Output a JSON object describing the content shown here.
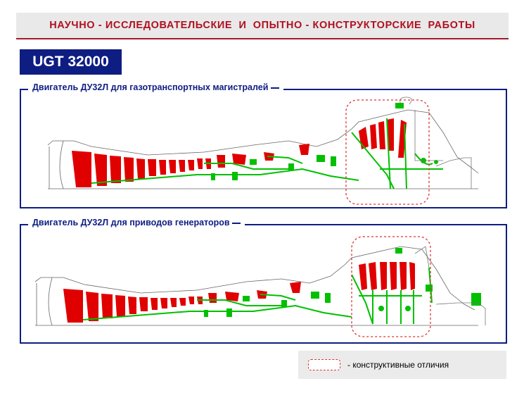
{
  "header": {
    "title": "НАУЧНО - ИССЛЕДОВАТЕЛЬСКИЕ  И  ОПЫТНО - КОНСТРУКТОРСКИЕ  РАБОТЫ"
  },
  "badge": {
    "label": "UGT 32000"
  },
  "panels": [
    {
      "title": "Двигатель ДУ32Л для газотранспортных магистралей"
    },
    {
      "title": "Двигатель ДУ32Л для приводов генераторов"
    }
  ],
  "legend": {
    "label": "- конструктивные отличия"
  },
  "colors": {
    "accent_red": "#b01020",
    "navy": "#0e1d82",
    "blade_red": "#e00000",
    "structure_green": "#00c000",
    "highlight_dash": "#dd3333"
  }
}
